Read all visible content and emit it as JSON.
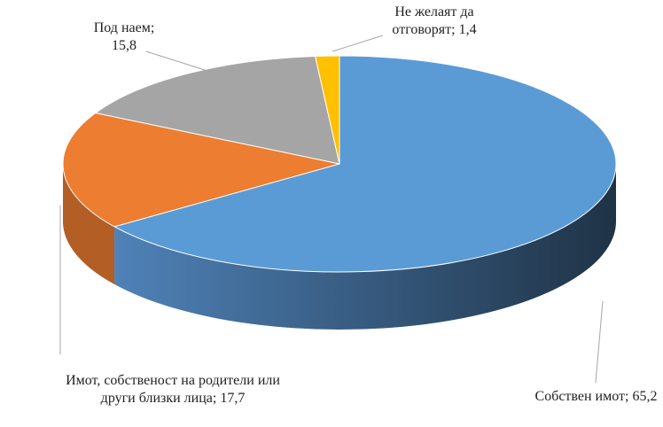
{
  "chart_data": {
    "type": "pie3d",
    "categories": [
      "Собствен имот;",
      "Имот, собственост на родители или други близки лица;",
      "Под наем;",
      "Не желаят да отговорят;"
    ],
    "values": [
      65.2,
      17.7,
      15.8,
      1.4
    ],
    "value_labels": [
      "65,2",
      "17,7",
      "15,8",
      "1,4"
    ],
    "colors": [
      "#5b9bd5",
      "#ed7d31",
      "#a5a5a5",
      "#ffc000"
    ]
  }
}
